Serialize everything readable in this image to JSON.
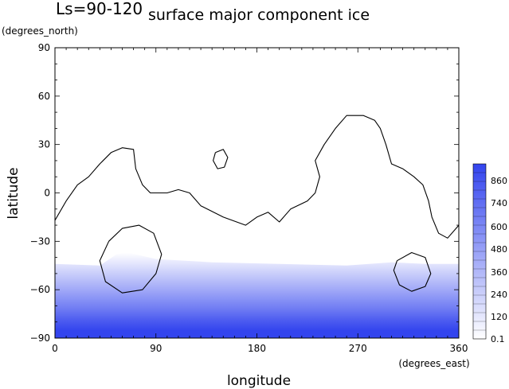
{
  "chart_data": {
    "type": "heatmap",
    "title": "surface major component ice",
    "subtitle": "Ls=90-120",
    "xlabel": "longitude",
    "ylabel": "latitude",
    "x_units": "(degrees_east)",
    "y_units": "(degrees_north)",
    "xlim": [
      0,
      360
    ],
    "ylim": [
      -90,
      90
    ],
    "x_ticks": [
      "0",
      "90",
      "180",
      "270",
      "360"
    ],
    "y_ticks": [
      "90",
      "60",
      "30",
      "0",
      "−30",
      "−60",
      "−90"
    ],
    "colorbar": {
      "labels": [
        "860",
        "740",
        "600",
        "480",
        "360",
        "240",
        "120",
        "0.1"
      ],
      "color_low": "#ffffff",
      "color_high": "#3344ee"
    },
    "ice_profile": [
      {
        "lat": -44,
        "value": 0.1
      },
      {
        "lat": -50,
        "value": 120
      },
      {
        "lat": -56,
        "value": 240
      },
      {
        "lat": -62,
        "value": 360
      },
      {
        "lat": -68,
        "value": 480
      },
      {
        "lat": -74,
        "value": 600
      },
      {
        "lat": -80,
        "value": 740
      },
      {
        "lat": -86,
        "value": 860
      }
    ],
    "contours": [
      {
        "name": "main",
        "points": [
          [
            0,
            -17
          ],
          [
            10,
            -5
          ],
          [
            20,
            5
          ],
          [
            30,
            10
          ],
          [
            40,
            18
          ],
          [
            50,
            25
          ],
          [
            60,
            28
          ],
          [
            70,
            27
          ],
          [
            72,
            15
          ],
          [
            78,
            5
          ],
          [
            85,
            0
          ],
          [
            100,
            0
          ],
          [
            110,
            2
          ],
          [
            120,
            0
          ],
          [
            130,
            -8
          ],
          [
            150,
            -15
          ],
          [
            170,
            -20
          ],
          [
            180,
            -15
          ],
          [
            190,
            -12
          ],
          [
            200,
            -18
          ],
          [
            210,
            -10
          ],
          [
            225,
            -5
          ],
          [
            232,
            0
          ],
          [
            236,
            10
          ],
          [
            232,
            20
          ],
          [
            240,
            30
          ],
          [
            250,
            40
          ],
          [
            260,
            48
          ],
          [
            275,
            48
          ],
          [
            285,
            45
          ],
          [
            290,
            40
          ],
          [
            295,
            30
          ],
          [
            300,
            18
          ],
          [
            310,
            15
          ],
          [
            320,
            10
          ],
          [
            328,
            5
          ],
          [
            333,
            -5
          ],
          [
            336,
            -15
          ],
          [
            342,
            -25
          ],
          [
            350,
            -28
          ],
          [
            360,
            -20
          ]
        ]
      },
      {
        "name": "small-island",
        "points": [
          [
            143,
            25
          ],
          [
            150,
            27
          ],
          [
            154,
            22
          ],
          [
            151,
            16
          ],
          [
            145,
            15
          ],
          [
            141,
            20
          ],
          [
            143,
            25
          ]
        ]
      },
      {
        "name": "south-west-loop",
        "points": [
          [
            48,
            -30
          ],
          [
            60,
            -22
          ],
          [
            75,
            -20
          ],
          [
            88,
            -25
          ],
          [
            95,
            -38
          ],
          [
            90,
            -50
          ],
          [
            78,
            -60
          ],
          [
            60,
            -62
          ],
          [
            45,
            -55
          ],
          [
            40,
            -42
          ],
          [
            48,
            -30
          ]
        ]
      },
      {
        "name": "south-east-loop",
        "points": [
          [
            305,
            -42
          ],
          [
            318,
            -37
          ],
          [
            330,
            -40
          ],
          [
            335,
            -50
          ],
          [
            330,
            -58
          ],
          [
            318,
            -61
          ],
          [
            307,
            -57
          ],
          [
            302,
            -48
          ],
          [
            305,
            -42
          ]
        ]
      }
    ]
  }
}
